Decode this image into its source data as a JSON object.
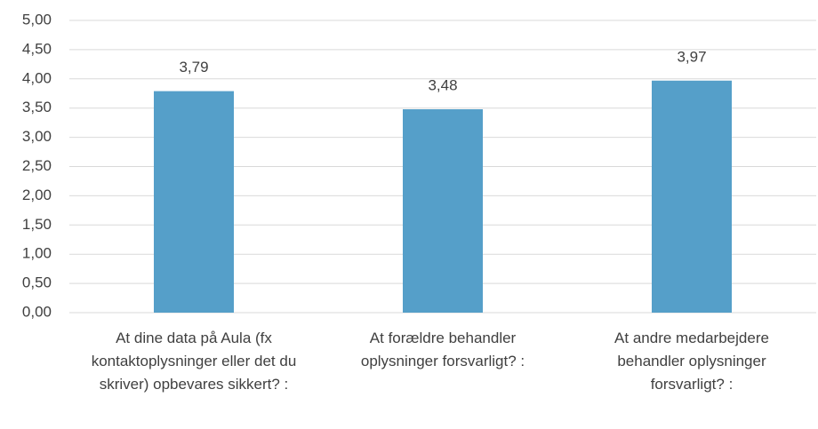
{
  "chart_data": {
    "type": "bar",
    "categories": [
      "At dine data på Aula (fx kontaktoplysninger eller det du skriver) opbevares sikkert? :",
      "At forældre behandler oplysninger forsvarligt? :",
      "At andre medarbejdere behandler oplysninger forsvarligt? :"
    ],
    "values": [
      3.79,
      3.48,
      3.97
    ],
    "value_labels": [
      "3,79",
      "3,48",
      "3,97"
    ],
    "color": "#559fc9",
    "ylim": [
      0,
      5
    ],
    "yticks": [
      {
        "value": 0,
        "label": "0,00"
      },
      {
        "value": 0.5,
        "label": "0,50"
      },
      {
        "value": 1,
        "label": "1,00"
      },
      {
        "value": 1.5,
        "label": "1,50"
      },
      {
        "value": 2,
        "label": "2,00"
      },
      {
        "value": 2.5,
        "label": "2,50"
      },
      {
        "value": 3,
        "label": "3,00"
      },
      {
        "value": 3.5,
        "label": "3,50"
      },
      {
        "value": 4,
        "label": "4,00"
      },
      {
        "value": 4.5,
        "label": "4,50"
      },
      {
        "value": 5,
        "label": "5,00"
      }
    ],
    "grid": true
  }
}
